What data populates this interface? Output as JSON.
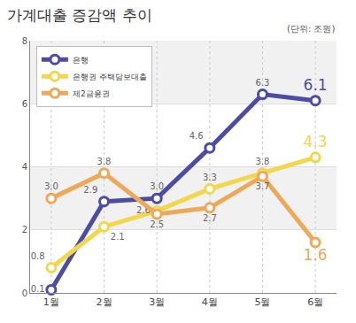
{
  "chart_data": {
    "type": "line",
    "title": "가계대출 증감액 추이",
    "annotations": [
      "(단위: 조원)"
    ],
    "categories": [
      "1월",
      "2월",
      "3월",
      "4월",
      "5월",
      "6월"
    ],
    "series": [
      {
        "name": "은행",
        "color": "#4b4ba8",
        "values": [
          0.1,
          2.9,
          3.0,
          4.6,
          6.3,
          6.1
        ],
        "value_labels": [
          "0.1",
          "2.9",
          "3.0",
          "4.6",
          "6.3",
          "6.1"
        ]
      },
      {
        "name": "은행권 주택담보대출",
        "color": "#f2d64b",
        "values": [
          0.8,
          2.1,
          2.6,
          3.3,
          3.8,
          4.3
        ],
        "value_labels": [
          "0.8",
          "2.1",
          "2.6",
          "3.3",
          "3.8",
          "4.3"
        ]
      },
      {
        "name": "제2금융권",
        "color": "#eea858",
        "values": [
          3.0,
          3.8,
          2.5,
          2.7,
          3.7,
          1.6
        ],
        "value_labels": [
          "3.0",
          "3.8",
          "2.5",
          "2.7",
          "3.7",
          "1.6"
        ]
      }
    ],
    "ylim": [
      0,
      8
    ],
    "yticks": [
      0,
      2,
      4,
      6,
      8
    ],
    "grid": true,
    "legend": "top left",
    "data_labels": true,
    "marker": "circle",
    "line_style": "solid"
  }
}
